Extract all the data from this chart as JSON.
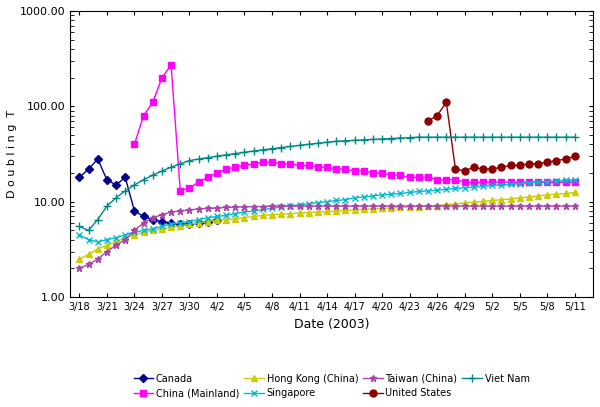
{
  "xlabel": "Date (2003)",
  "ylabel": "D o u b l i n g  T",
  "ylim": [
    1.0,
    1000.0
  ],
  "xtick_labels": [
    "3/18",
    "3/21",
    "3/24",
    "3/27",
    "3/30",
    "4/2",
    "4/5",
    "4/8",
    "4/11",
    "4/14",
    "4/17",
    "4/20",
    "4/23",
    "4/26",
    "4/29",
    "5/2",
    "5/5",
    "5/8",
    "5/11"
  ],
  "xtick_days": [
    0,
    3,
    6,
    9,
    12,
    15,
    18,
    21,
    24,
    27,
    30,
    33,
    36,
    39,
    42,
    45,
    48,
    51,
    54
  ],
  "series": {
    "Canada": {
      "color": "#00008B",
      "marker": "D",
      "markersize": 4,
      "x_days": [
        0,
        1,
        2,
        3,
        4,
        5,
        6,
        7,
        8,
        9,
        10,
        11,
        12,
        13,
        14,
        15
      ],
      "y": [
        18,
        22,
        28,
        17,
        15,
        18,
        8,
        7,
        6.5,
        6.2,
        6.0,
        5.8,
        5.8,
        6.0,
        6.2,
        6.5
      ]
    },
    "China (Mainland)": {
      "color": "#FF00FF",
      "marker": "s",
      "markersize": 5,
      "x_days": [
        6,
        7,
        8,
        9,
        10,
        11,
        12,
        13,
        14,
        15,
        16,
        17,
        18,
        19,
        20,
        21,
        22,
        23,
        24,
        25,
        26,
        27,
        28,
        29,
        30,
        31,
        32,
        33,
        34,
        35,
        36,
        37,
        38,
        39,
        40,
        41,
        42,
        43,
        44,
        45,
        46,
        47,
        48,
        49,
        50,
        51,
        52,
        53,
        54
      ],
      "y": [
        40,
        80,
        110,
        200,
        270,
        13,
        14,
        16,
        18,
        20,
        22,
        23,
        24,
        25,
        26,
        26,
        25,
        25,
        24,
        24,
        23,
        23,
        22,
        22,
        21,
        21,
        20,
        20,
        19,
        19,
        18,
        18,
        18,
        17,
        17,
        17,
        16,
        16,
        16,
        16,
        16,
        16,
        16,
        16,
        16,
        16,
        16,
        16,
        16
      ]
    },
    "Hong Kong (China)": {
      "color": "#DDDD00",
      "marker": "^",
      "markersize": 5,
      "x_days": [
        0,
        1,
        2,
        3,
        4,
        5,
        6,
        7,
        8,
        9,
        10,
        11,
        12,
        13,
        14,
        15,
        16,
        17,
        18,
        19,
        20,
        21,
        22,
        23,
        24,
        25,
        26,
        27,
        28,
        29,
        30,
        31,
        32,
        33,
        34,
        35,
        36,
        37,
        38,
        39,
        40,
        41,
        42,
        43,
        44,
        45,
        46,
        47,
        48,
        49,
        50,
        51,
        52,
        53,
        54
      ],
      "y": [
        2.5,
        2.8,
        3.2,
        3.5,
        3.8,
        4.2,
        4.5,
        4.8,
        5.0,
        5.2,
        5.4,
        5.6,
        5.8,
        6.0,
        6.2,
        6.4,
        6.5,
        6.6,
        6.8,
        7.0,
        7.2,
        7.3,
        7.4,
        7.5,
        7.6,
        7.7,
        7.8,
        7.9,
        8.0,
        8.1,
        8.2,
        8.3,
        8.4,
        8.5,
        8.6,
        8.7,
        8.8,
        8.9,
        9.0,
        9.1,
        9.3,
        9.5,
        9.7,
        9.9,
        10.1,
        10.3,
        10.5,
        10.7,
        11.0,
        11.2,
        11.5,
        11.8,
        12.0,
        12.2,
        12.5
      ]
    },
    "Singapore": {
      "color": "#00CCDD",
      "marker": "x",
      "markersize": 5,
      "x_days": [
        0,
        1,
        2,
        3,
        4,
        5,
        6,
        7,
        8,
        9,
        10,
        11,
        12,
        13,
        14,
        15,
        16,
        17,
        18,
        19,
        20,
        21,
        22,
        23,
        24,
        25,
        26,
        27,
        28,
        29,
        30,
        31,
        32,
        33,
        34,
        35,
        36,
        37,
        38,
        39,
        40,
        41,
        42,
        43,
        44,
        45,
        46,
        47,
        48,
        49,
        50,
        51,
        52,
        53,
        54
      ],
      "y": [
        4.5,
        4.0,
        3.8,
        4.0,
        4.2,
        4.5,
        4.8,
        5.0,
        5.2,
        5.5,
        5.8,
        6.0,
        6.2,
        6.5,
        6.8,
        7.0,
        7.2,
        7.5,
        7.8,
        8.0,
        8.3,
        8.5,
        8.8,
        9.0,
        9.3,
        9.5,
        9.8,
        10.0,
        10.3,
        10.5,
        11.0,
        11.2,
        11.5,
        11.8,
        12.0,
        12.2,
        12.5,
        12.8,
        13.0,
        13.2,
        13.5,
        13.8,
        14.0,
        14.2,
        14.5,
        14.8,
        15.0,
        15.2,
        15.5,
        15.8,
        16.0,
        16.2,
        16.5,
        16.8,
        17.0
      ]
    },
    "Taiwan (China)": {
      "color": "#AA44AA",
      "marker": "*",
      "markersize": 5,
      "x_days": [
        0,
        1,
        2,
        3,
        4,
        5,
        6,
        7,
        8,
        9,
        10,
        11,
        12,
        13,
        14,
        15,
        16,
        17,
        18,
        19,
        20,
        21,
        22,
        23,
        24,
        25,
        26,
        27,
        28,
        29,
        30,
        31,
        32,
        33,
        34,
        35,
        36,
        37,
        38,
        39,
        40,
        41,
        42,
        43,
        44,
        45,
        46,
        47,
        48,
        49,
        50,
        51,
        52,
        53,
        54
      ],
      "y": [
        2.0,
        2.2,
        2.5,
        3.0,
        3.5,
        4.0,
        5.0,
        6.0,
        6.8,
        7.3,
        7.8,
        8.0,
        8.2,
        8.4,
        8.5,
        8.6,
        8.7,
        8.8,
        8.8,
        8.9,
        8.9,
        9.0,
        9.0,
        9.0,
        9.0,
        9.0,
        9.0,
        9.0,
        9.0,
        9.0,
        9.0,
        9.0,
        9.0,
        9.0,
        9.0,
        9.0,
        9.0,
        9.0,
        9.0,
        9.0,
        9.0,
        9.0,
        9.0,
        9.0,
        9.0,
        9.0,
        9.0,
        9.0,
        9.0,
        9.0,
        9.0,
        9.0,
        9.0,
        9.0,
        9.0
      ]
    },
    "United States": {
      "color": "#8B0000",
      "marker": "o",
      "markersize": 5,
      "x_days": [
        38,
        39,
        40,
        41,
        42,
        43,
        44,
        45,
        46,
        47,
        48,
        49,
        50,
        51,
        52,
        53,
        54
      ],
      "y": [
        70,
        80,
        110,
        22,
        21,
        23,
        22,
        22,
        23,
        24,
        24,
        25,
        25,
        26,
        27,
        28,
        30
      ]
    },
    "Viet Nam": {
      "color": "#008888",
      "marker": "+",
      "markersize": 6,
      "x_days": [
        0,
        1,
        2,
        3,
        4,
        5,
        6,
        7,
        8,
        9,
        10,
        11,
        12,
        13,
        14,
        15,
        16,
        17,
        18,
        19,
        20,
        21,
        22,
        23,
        24,
        25,
        26,
        27,
        28,
        29,
        30,
        31,
        32,
        33,
        34,
        35,
        36,
        37,
        38,
        39,
        40,
        41,
        42,
        43,
        44,
        45,
        46,
        47,
        48,
        49,
        50,
        51,
        52,
        53,
        54
      ],
      "y": [
        5.5,
        5.0,
        6.5,
        9.0,
        11.0,
        13.0,
        15.0,
        17.0,
        19.0,
        21.0,
        23.0,
        25.0,
        27.0,
        28.0,
        29.0,
        30.0,
        31.0,
        32.0,
        33.0,
        34.0,
        35.0,
        36.0,
        37.0,
        38.0,
        39.0,
        40.0,
        41.0,
        42.0,
        43.0,
        43.5,
        44.0,
        44.5,
        45.0,
        45.5,
        46.0,
        46.5,
        47.0,
        47.5,
        47.5,
        47.5,
        47.5,
        47.5,
        47.5,
        47.5,
        47.5,
        47.5,
        47.5,
        47.5,
        47.5,
        47.5,
        47.5,
        47.5,
        47.5,
        47.5,
        47.5
      ]
    }
  },
  "legend_order": [
    "Canada",
    "China (Mainland)",
    "Hong Kong (China)",
    "Singapore",
    "Taiwan (China)",
    "United States",
    "Viet Nam"
  ]
}
